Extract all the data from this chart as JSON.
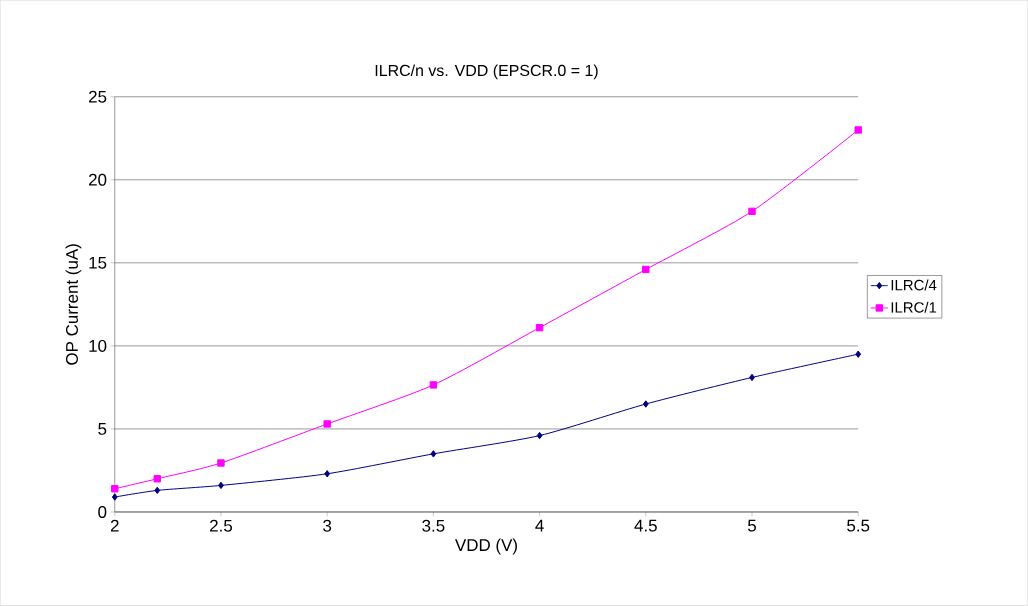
{
  "chart_data": {
    "type": "line",
    "title": "ILRC/n vs. VDD (EPSCR.0 = 1)",
    "xlabel": "VDD (V)",
    "ylabel": "OP Current (uA)",
    "x": [
      2,
      2.2,
      2.5,
      3,
      3.5,
      4,
      4.5,
      5,
      5.5
    ],
    "series": [
      {
        "name": "ILRC/4",
        "color": "#000080",
        "marker": "diamond",
        "values": [
          0.9,
          1.3,
          1.6,
          2.3,
          3.5,
          4.6,
          6.5,
          8.1,
          9.5
        ]
      },
      {
        "name": "ILRC/1",
        "color": "#ff00ff",
        "marker": "square",
        "values": [
          1.4,
          2.0,
          2.95,
          5.3,
          7.65,
          11.1,
          14.6,
          18.1,
          23.0
        ]
      }
    ],
    "xlim": [
      2,
      5.5
    ],
    "ylim": [
      0,
      25
    ],
    "xticks": [
      2,
      2.5,
      3,
      3.5,
      4,
      4.5,
      5,
      5.5
    ],
    "yticks": [
      0,
      5,
      10,
      15,
      20,
      25
    ],
    "grid": "y",
    "legend": "right",
    "line_style": "solid"
  }
}
